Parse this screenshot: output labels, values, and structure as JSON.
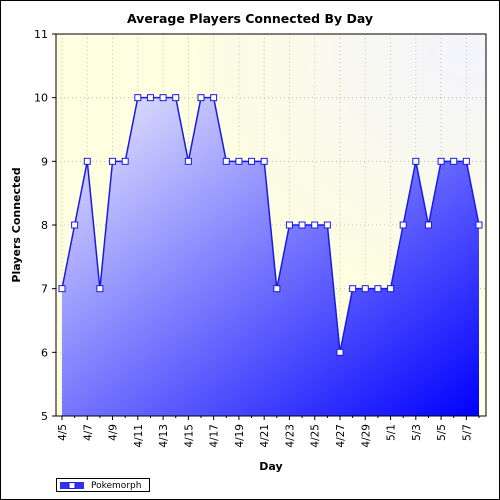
{
  "chart_data": {
    "type": "area",
    "title": "Average Players Connected By Day",
    "xlabel": "Day",
    "ylabel": "Players Connected",
    "ylim": [
      5,
      11
    ],
    "yticks": [
      5,
      6,
      7,
      8,
      9,
      10,
      11
    ],
    "categories": [
      "4/5",
      "4/6",
      "4/7",
      "4/8",
      "4/9",
      "4/10",
      "4/11",
      "4/12",
      "4/13",
      "4/14",
      "4/15",
      "4/16",
      "4/17",
      "4/18",
      "4/19",
      "4/20",
      "4/21",
      "4/22",
      "4/23",
      "4/24",
      "4/25",
      "4/26",
      "4/27",
      "4/28",
      "4/29",
      "4/30",
      "5/1",
      "5/2",
      "5/3",
      "5/4",
      "5/5",
      "5/6",
      "5/7",
      "5/8"
    ],
    "tick_labels": [
      "4/5",
      "4/7",
      "4/9",
      "4/11",
      "4/13",
      "4/15",
      "4/17",
      "4/19",
      "4/21",
      "4/23",
      "4/25",
      "4/27",
      "4/29",
      "5/1",
      "5/3",
      "5/5",
      "5/7"
    ],
    "series": [
      {
        "name": "Pokemorph",
        "values": [
          7,
          8,
          9,
          7,
          9,
          9,
          10,
          10,
          10,
          10,
          9,
          10,
          10,
          9,
          9,
          9,
          9,
          7,
          8,
          8,
          8,
          8,
          6,
          7,
          7,
          7,
          7,
          8,
          9,
          8,
          9,
          9,
          9,
          8
        ]
      }
    ],
    "grid": true,
    "legend_position": "bottom-left",
    "colors": {
      "plot_bg": "#fefee0",
      "line": "#1a1ae6",
      "fill_light": "#ececfd",
      "fill_dark": "#0000ff",
      "grid": "#b8b8a0",
      "marker_fill": "#ffffff"
    }
  }
}
